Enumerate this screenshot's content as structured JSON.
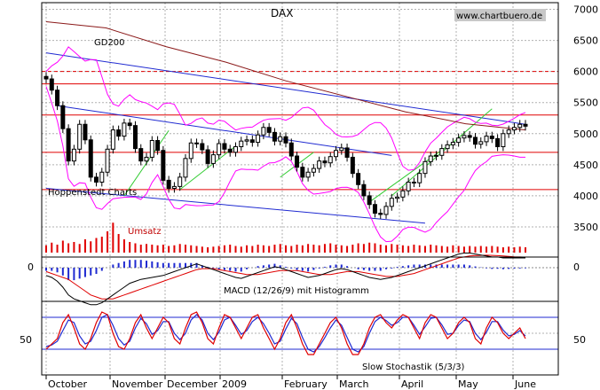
{
  "chart_data": {
    "type": "candlestick",
    "title": "DAX",
    "source": "www.chartbuero.de",
    "credit": "Hoppenstedt Charts",
    "x_labels": [
      "October",
      "November",
      "December",
      "2009",
      "February",
      "March",
      "April",
      "May",
      "June"
    ],
    "price_axis": {
      "ticks": [
        3500,
        4000,
        4500,
        5000,
        5500,
        6000,
        6500,
        7000
      ],
      "ylim": [
        3300,
        7050
      ],
      "grid": true
    },
    "price_series": {
      "closes": [
        5880,
        5700,
        5450,
        5080,
        4560,
        4750,
        5150,
        4900,
        4300,
        4220,
        4380,
        4750,
        5060,
        4960,
        5170,
        5130,
        4760,
        4560,
        4620,
        4890,
        4730,
        4250,
        4120,
        4150,
        4300,
        4600,
        4850,
        4840,
        4740,
        4520,
        4660,
        4840,
        4750,
        4700,
        4790,
        4880,
        4900,
        4860,
        4980,
        5100,
        5020,
        4880,
        4950,
        4850,
        4640,
        4460,
        4300,
        4380,
        4440,
        4560,
        4530,
        4630,
        4730,
        4770,
        4620,
        4360,
        4180,
        4000,
        3860,
        3720,
        3700,
        3830,
        3960,
        3980,
        4080,
        4220,
        4210,
        4360,
        4550,
        4640,
        4650,
        4760,
        4820,
        4860,
        4930,
        4970,
        4940,
        4830,
        4870,
        4960,
        4920,
        4790,
        5000,
        5060,
        5100,
        5150,
        5120
      ]
    },
    "overlays": [
      {
        "name": "GD200",
        "color": "#8b1a1a",
        "values": [
          6800,
          6700,
          6400,
          6150,
          5850,
          5600,
          5350,
          5160,
          5060
        ]
      },
      {
        "name": "Bollinger Bands",
        "color": "#ff00ff"
      }
    ],
    "trendlines": {
      "red_horizontal": [
        5800,
        5300,
        4700,
        4100
      ],
      "red_dashed": 6000,
      "blue": [
        {
          "from": [
            0,
            6300
          ],
          "to": [
            86,
            5150
          ]
        },
        {
          "from": [
            2,
            5450
          ],
          "to": [
            62,
            4650
          ]
        },
        {
          "from": [
            0,
            4120
          ],
          "to": [
            68,
            3560
          ]
        }
      ]
    },
    "volume": {
      "label": "Umsatz",
      "values": [
        11,
        15,
        12,
        18,
        14,
        16,
        13,
        20,
        17,
        22,
        24,
        32,
        45,
        28,
        20,
        16,
        14,
        12,
        13,
        12,
        11,
        12,
        10,
        11,
        13,
        12,
        11,
        10,
        9,
        8,
        9,
        10,
        11,
        12,
        10,
        9,
        11,
        10,
        12,
        11,
        10,
        12,
        13,
        11,
        10,
        12,
        11,
        13,
        12,
        11,
        13,
        14,
        12,
        11,
        10,
        12,
        14,
        13,
        15,
        14,
        12,
        11,
        13,
        12,
        11,
        10,
        12,
        11,
        10,
        12,
        11,
        10,
        9,
        11,
        10,
        9,
        10,
        9,
        10,
        9,
        10,
        9,
        8,
        9,
        8,
        9,
        8
      ]
    },
    "macd": {
      "label": "MACD (12/26/9) mit Histogramm",
      "tick": "0",
      "ylim": [
        -250,
        150
      ],
      "macd": [
        -40,
        -50,
        -70,
        -100,
        -140,
        -160,
        -170,
        -180,
        -190,
        -190,
        -180,
        -160,
        -140,
        -120,
        -100,
        -80,
        -70,
        -60,
        -55,
        -50,
        -45,
        -40,
        -30,
        -20,
        -10,
        0,
        10,
        20,
        10,
        0,
        -10,
        -20,
        -30,
        -40,
        -50,
        -55,
        -45,
        -35,
        -25,
        -15,
        -5,
        5,
        0,
        -10,
        -20,
        -30,
        -40,
        -50,
        -45,
        -40,
        -30,
        -20,
        -10,
        -5,
        -10,
        -20,
        -30,
        -40,
        -50,
        -55,
        -60,
        -55,
        -50,
        -40,
        -30,
        -20,
        -10,
        0,
        10,
        20,
        30,
        40,
        50,
        60,
        70,
        75,
        75,
        70,
        65,
        60,
        55,
        55,
        50,
        50,
        50,
        50,
        50
      ],
      "signal": [
        -20,
        -30,
        -40,
        -50,
        -60,
        -80,
        -100,
        -120,
        -140,
        -150,
        -160,
        -160,
        -160,
        -150,
        -140,
        -130,
        -120,
        -110,
        -100,
        -90,
        -80,
        -70,
        -60,
        -50,
        -40,
        -30,
        -20,
        -10,
        -5,
        -5,
        -5,
        -10,
        -15,
        -20,
        -25,
        -30,
        -35,
        -35,
        -35,
        -30,
        -25,
        -20,
        -15,
        -15,
        -15,
        -15,
        -20,
        -25,
        -30,
        -35,
        -35,
        -35,
        -30,
        -25,
        -20,
        -20,
        -20,
        -25,
        -30,
        -35,
        -40,
        -45,
        -45,
        -45,
        -40,
        -35,
        -30,
        -20,
        -10,
        0,
        10,
        20,
        30,
        40,
        50,
        55,
        60,
        62,
        63,
        64,
        63,
        62,
        60,
        58,
        56,
        55,
        54
      ]
    },
    "stochastic": {
      "label": "Slow Stochastik (5/3/3)",
      "tick": "50",
      "ylim": [
        0,
        100
      ],
      "levels": [
        80,
        20
      ],
      "k": [
        20,
        30,
        40,
        70,
        85,
        60,
        30,
        20,
        40,
        70,
        90,
        85,
        50,
        25,
        20,
        40,
        70,
        85,
        60,
        40,
        60,
        80,
        70,
        40,
        30,
        60,
        85,
        90,
        70,
        40,
        30,
        60,
        85,
        80,
        60,
        40,
        60,
        80,
        85,
        60,
        40,
        20,
        40,
        70,
        85,
        60,
        30,
        10,
        10,
        30,
        50,
        70,
        80,
        60,
        30,
        10,
        10,
        30,
        60,
        80,
        85,
        70,
        60,
        75,
        85,
        80,
        60,
        40,
        70,
        85,
        80,
        60,
        40,
        50,
        70,
        80,
        70,
        40,
        30,
        60,
        80,
        70,
        50,
        40,
        50,
        60,
        40
      ],
      "d": [
        25,
        28,
        35,
        55,
        75,
        70,
        45,
        30,
        35,
        55,
        80,
        85,
        65,
        40,
        28,
        35,
        60,
        78,
        68,
        48,
        55,
        72,
        72,
        50,
        38,
        50,
        75,
        85,
        75,
        50,
        38,
        52,
        75,
        80,
        65,
        48,
        55,
        72,
        80,
        68,
        50,
        30,
        35,
        58,
        78,
        68,
        42,
        20,
        15,
        25,
        42,
        60,
        75,
        65,
        42,
        20,
        15,
        25,
        50,
        72,
        80,
        74,
        65,
        70,
        80,
        80,
        65,
        48,
        62,
        78,
        80,
        66,
        48,
        50,
        65,
        75,
        72,
        50,
        38,
        52,
        72,
        72,
        56,
        45,
        48,
        55,
        45
      ]
    }
  }
}
